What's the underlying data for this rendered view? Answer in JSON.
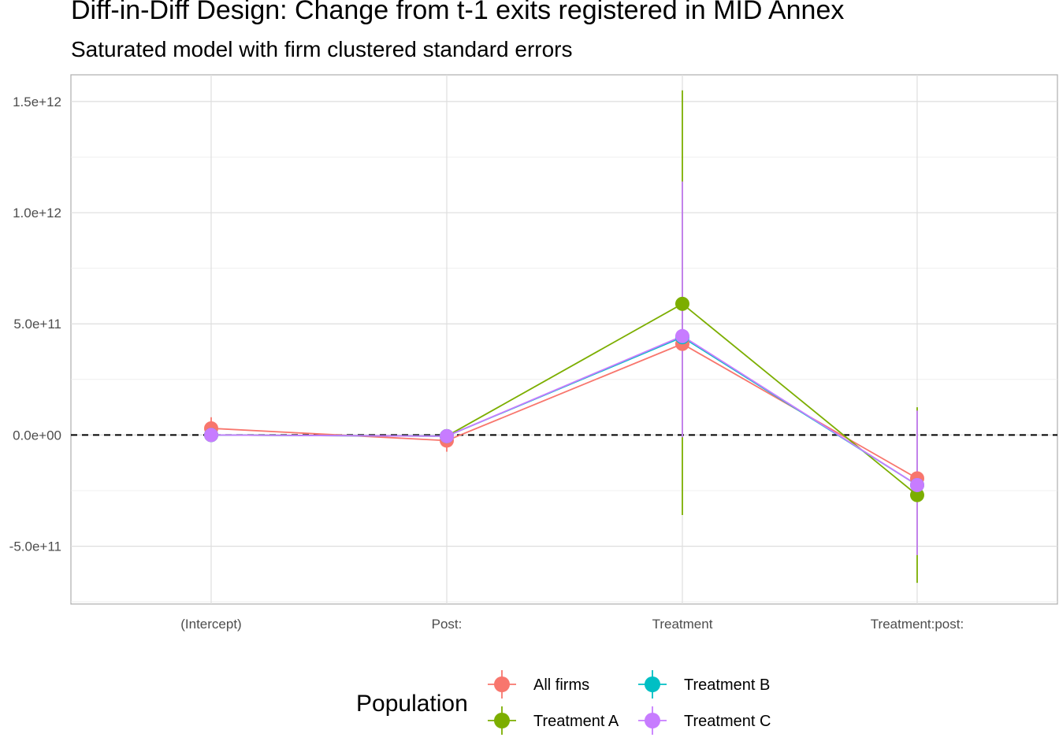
{
  "chart_data": {
    "type": "scatter",
    "title": "Diff-in-Diff Design: Change from t-1 exits registered in MID Annex",
    "subtitle": "Saturated model with firm clustered standard errors",
    "xlabel": "",
    "ylabel": "",
    "categories": [
      "(Intercept)",
      "Post:",
      "Treatment",
      "Treatment:post:"
    ],
    "y_ticks": [
      -500000000000,
      0,
      500000000000,
      1000000000000,
      1500000000000
    ],
    "y_tick_labels": [
      "-5.0e+11",
      "0.0e+00",
      "5.0e+11",
      "1.0e+12",
      "1.5e+12"
    ],
    "ylim": [
      -760000000000,
      1620000000000
    ],
    "reference_line": 0,
    "grid": true,
    "legend": {
      "title": "Population",
      "position": "bottom"
    },
    "series": [
      {
        "name": "All firms",
        "color": "#F8766D",
        "values": [
          30000000000,
          -25000000000,
          410000000000,
          -195000000000
        ],
        "lower": [
          -20000000000,
          -75000000000,
          390000000000,
          -215000000000
        ],
        "upper": [
          80000000000,
          25000000000,
          430000000000,
          -175000000000
        ]
      },
      {
        "name": "Treatment A",
        "color": "#7CAE00",
        "values": [
          0,
          -5000000000,
          590000000000,
          -270000000000
        ],
        "lower": [
          -10000000000,
          -15000000000,
          -360000000000,
          -665000000000
        ],
        "upper": [
          10000000000,
          5000000000,
          1550000000000,
          125000000000
        ]
      },
      {
        "name": "Treatment B",
        "color": "#00BFC4",
        "values": [
          0,
          -5000000000,
          440000000000,
          -225000000000
        ],
        "lower": [
          -10000000000,
          -15000000000,
          430000000000,
          -235000000000
        ],
        "upper": [
          10000000000,
          5000000000,
          450000000000,
          -215000000000
        ]
      },
      {
        "name": "Treatment C",
        "color": "#C77CFF",
        "values": [
          0,
          -5000000000,
          445000000000,
          -225000000000
        ],
        "lower": [
          -10000000000,
          -15000000000,
          -10000000000,
          -540000000000
        ],
        "upper": [
          10000000000,
          5000000000,
          1140000000000,
          110000000000
        ]
      }
    ]
  }
}
